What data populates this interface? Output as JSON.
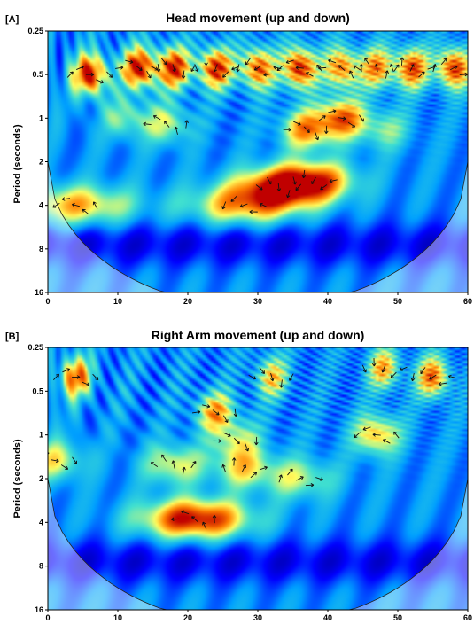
{
  "chart_data": [
    {
      "type": "heatmap",
      "panel_label": "[A]",
      "title": "Head movement (up and down)",
      "xlabel": "",
      "ylabel": "Period (seconds)",
      "xlim": [
        0,
        60
      ],
      "y_scale": "log2",
      "ylim": [
        0.25,
        16
      ],
      "x_ticks": [
        "0",
        "10",
        "20",
        "30",
        "40",
        "50",
        "60"
      ],
      "y_ticks": [
        "0.25",
        "0.5",
        "1",
        "2",
        "4",
        "8",
        "16"
      ],
      "colormap": [
        "#00008f",
        "#0000ff",
        "#00a0ff",
        "#40e0d0",
        "#ffff60",
        "#ff8000",
        "#c00000"
      ],
      "hotspots": [
        {
          "t": 6,
          "p": 0.5,
          "power": 0.95
        },
        {
          "t": 13,
          "p": 0.45,
          "power": 0.95
        },
        {
          "t": 18,
          "p": 0.45,
          "power": 0.9
        },
        {
          "t": 24,
          "p": 0.45,
          "power": 0.9
        },
        {
          "t": 30,
          "p": 0.45,
          "power": 0.85
        },
        {
          "t": 36,
          "p": 0.45,
          "power": 0.95
        },
        {
          "t": 42,
          "p": 0.45,
          "power": 0.8
        },
        {
          "t": 47,
          "p": 0.45,
          "power": 0.75
        },
        {
          "t": 52,
          "p": 0.45,
          "power": 0.85
        },
        {
          "t": 58,
          "p": 0.45,
          "power": 0.9
        },
        {
          "t": 42,
          "p": 1.0,
          "power": 0.8
        },
        {
          "t": 37,
          "p": 1.2,
          "power": 0.75
        },
        {
          "t": 33,
          "p": 3.0,
          "power": 0.8
        },
        {
          "t": 38,
          "p": 2.7,
          "power": 0.75
        },
        {
          "t": 28,
          "p": 4.0,
          "power": 0.7
        },
        {
          "t": 4,
          "p": 4.0,
          "power": 0.7
        },
        {
          "t": 17,
          "p": 1.1,
          "power": 0.55
        },
        {
          "t": 11,
          "p": 1.0,
          "power": 0.5
        },
        {
          "t": 48,
          "p": 1.2,
          "power": 0.5
        }
      ]
    },
    {
      "type": "heatmap",
      "panel_label": "[B]",
      "title": "Right Arm movement (up and down)",
      "xlabel": "",
      "ylabel": "Period (seconds)",
      "xlim": [
        0,
        60
      ],
      "y_scale": "log2",
      "ylim": [
        0.25,
        16
      ],
      "x_ticks": [
        "0",
        "10",
        "20",
        "30",
        "40",
        "50",
        "60"
      ],
      "y_ticks": [
        "0.25",
        "0.5",
        "1",
        "2",
        "4",
        "8",
        "16"
      ],
      "colormap": [
        "#00008f",
        "#0000ff",
        "#00a0ff",
        "#40e0d0",
        "#ffff60",
        "#ff8000",
        "#c00000"
      ],
      "hotspots": [
        {
          "t": 4,
          "p": 0.4,
          "power": 0.8
        },
        {
          "t": 24,
          "p": 0.7,
          "power": 0.7
        },
        {
          "t": 32,
          "p": 0.4,
          "power": 0.65
        },
        {
          "t": 48,
          "p": 0.35,
          "power": 0.7
        },
        {
          "t": 55,
          "p": 0.4,
          "power": 0.8
        },
        {
          "t": 47,
          "p": 1.0,
          "power": 0.7
        },
        {
          "t": 21,
          "p": 3.8,
          "power": 0.95
        },
        {
          "t": 18,
          "p": 1.6,
          "power": 0.6
        },
        {
          "t": 28,
          "p": 1.7,
          "power": 0.6
        },
        {
          "t": 36,
          "p": 2.0,
          "power": 0.55
        },
        {
          "t": 1,
          "p": 1.5,
          "power": 0.6
        },
        {
          "t": 27,
          "p": 1.1,
          "power": 0.55
        }
      ]
    }
  ]
}
